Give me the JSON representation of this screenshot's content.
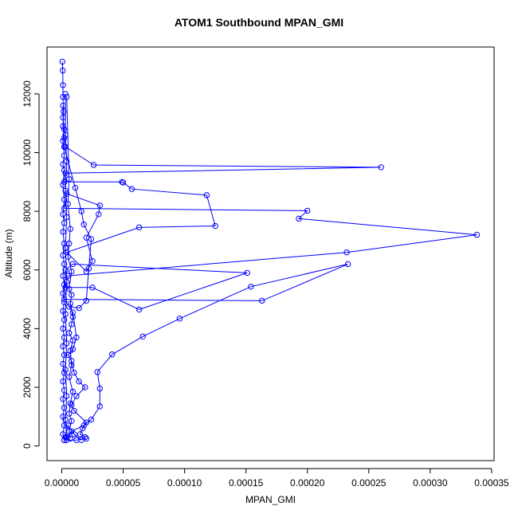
{
  "chart_data": {
    "type": "line",
    "title": "ATOM1 Southbound MPAN_GMI",
    "xlabel": "MPAN_GMI",
    "ylabel": "Altitude (m)",
    "xlim": [
      -1.2e-05,
      0.000352
    ],
    "ylim": [
      -500,
      13600
    ],
    "x_ticks": [
      0,
      5e-05,
      0.0001,
      0.00015,
      0.0002,
      0.00025,
      0.0003,
      0.00035
    ],
    "x_tick_labels": [
      "0.00000",
      "0.00005",
      "0.00010",
      "0.00015",
      "0.00020",
      "0.00025",
      "0.00030",
      "0.00035"
    ],
    "y_ticks": [
      0,
      2000,
      4000,
      6000,
      8000,
      10000,
      12000
    ],
    "y_tick_labels": [
      "0",
      "2000",
      "4000",
      "6000",
      "8000",
      "10000",
      "12000"
    ],
    "marker": "open-circle",
    "grid": false,
    "colors": {
      "series": "#0000ff",
      "axis": "#000000"
    },
    "series": [
      {
        "values": [
          [
            5e-07,
            13100
          ],
          [
            8e-07,
            12800
          ],
          [
            1e-06,
            12300
          ],
          [
            1e-06,
            11900
          ],
          [
            1.5e-06,
            11400
          ],
          [
            1e-06,
            10900
          ],
          [
            2e-06,
            10500
          ],
          [
            2e-06,
            10200
          ],
          [
            3e-06,
            10200
          ],
          [
            2.6e-05,
            9580
          ],
          [
            0.00026,
            9500
          ],
          [
            3e-06,
            9300
          ],
          [
            2e-06,
            9000
          ],
          [
            4.9e-05,
            9000
          ],
          [
            5e-05,
            8980
          ],
          [
            5.7e-05,
            8760
          ],
          [
            0.000118,
            8550
          ],
          [
            0.000125,
            7500
          ],
          [
            6.3e-05,
            7450
          ],
          [
            4e-06,
            6600
          ],
          [
            2e-05,
            5950
          ],
          [
            2.5e-05,
            6300
          ],
          [
            2e-05,
            7100
          ],
          [
            3e-05,
            7900
          ],
          [
            3.1e-05,
            8200
          ],
          [
            4e-06,
            8600
          ],
          [
            2e-06,
            8100
          ],
          [
            0.0002,
            8020
          ],
          [
            0.000193,
            7750
          ],
          [
            0.000338,
            7200
          ],
          [
            0.000232,
            6600
          ],
          [
            5e-06,
            5800
          ],
          [
            3e-06,
            5400
          ],
          [
            2.5e-05,
            5400
          ],
          [
            6.3e-05,
            4650
          ],
          [
            0.000151,
            5900
          ],
          [
            9e-06,
            6200
          ],
          [
            3e-06,
            6000
          ],
          [
            2e-06,
            5000
          ],
          [
            0.000163,
            4950
          ],
          [
            0.000233,
            6200
          ],
          [
            0.000154,
            5430
          ],
          [
            9.6e-05,
            4340
          ],
          [
            6.6e-05,
            3730
          ],
          [
            4.1e-05,
            3120
          ],
          [
            2.9e-05,
            2520
          ],
          [
            3.1e-05,
            1960
          ],
          [
            3.1e-05,
            1350
          ],
          [
            2.4e-05,
            900
          ],
          [
            1.8e-05,
            700
          ],
          [
            8e-06,
            500
          ],
          [
            4e-06,
            300
          ],
          [
            2e-06,
            200
          ],
          [
            1.2e-05,
            200
          ],
          [
            2e-05,
            250
          ]
        ]
      },
      {
        "values": [
          [
            2e-06,
            10200
          ],
          [
            1.1e-05,
            8800
          ],
          [
            1.6e-05,
            8000
          ],
          [
            1.8e-05,
            7550
          ],
          [
            2.4e-05,
            7050
          ],
          [
            2.2e-05,
            6050
          ],
          [
            2e-05,
            4950
          ],
          [
            1.4e-05,
            4700
          ],
          [
            6e-06,
            4750
          ],
          [
            9e-06,
            4550
          ],
          [
            1.2e-05,
            3700
          ],
          [
            9e-06,
            3300
          ],
          [
            5e-06,
            3100
          ],
          [
            8e-06,
            2900
          ],
          [
            1e-05,
            2500
          ],
          [
            1.4e-05,
            2200
          ],
          [
            1.9e-05,
            2000
          ],
          [
            1.2e-05,
            1700
          ],
          [
            8e-06,
            1400
          ],
          [
            1e-05,
            1200
          ],
          [
            2e-05,
            800
          ],
          [
            1.7e-05,
            600
          ],
          [
            1.5e-05,
            400
          ],
          [
            1.9e-05,
            300
          ],
          [
            1.6e-05,
            200
          ],
          [
            1e-05,
            400
          ],
          [
            5e-06,
            700
          ],
          [
            3e-06,
            300
          ]
        ]
      },
      {
        "values": [
          [
            1e-06,
            11600
          ],
          [
            1e-06,
            11200
          ],
          [
            2e-06,
            10800
          ],
          [
            1e-06,
            10400
          ],
          [
            2e-06,
            9900
          ],
          [
            1e-06,
            9600
          ],
          [
            2e-06,
            9400
          ],
          [
            1e-06,
            8900
          ],
          [
            2e-06,
            8400
          ],
          [
            1e-06,
            7900
          ],
          [
            2e-06,
            7600
          ],
          [
            1e-06,
            7300
          ],
          [
            2e-06,
            6900
          ],
          [
            1e-06,
            6500
          ],
          [
            2e-06,
            6200
          ],
          [
            1e-06,
            5800
          ],
          [
            2e-06,
            5500
          ],
          [
            1e-06,
            5200
          ],
          [
            2e-06,
            4900
          ],
          [
            1e-06,
            4600
          ],
          [
            2e-06,
            4300
          ],
          [
            1e-06,
            4000
          ],
          [
            2e-06,
            3700
          ],
          [
            1e-06,
            3400
          ],
          [
            2e-06,
            3100
          ],
          [
            1e-06,
            2800
          ],
          [
            2e-06,
            2500
          ],
          [
            1e-06,
            2200
          ],
          [
            2e-06,
            1900
          ],
          [
            1e-06,
            1600
          ],
          [
            2e-06,
            1300
          ],
          [
            1e-06,
            1000
          ],
          [
            2e-06,
            700
          ],
          [
            1e-06,
            400
          ],
          [
            2e-06,
            200
          ]
        ]
      },
      {
        "values": [
          [
            4e-06,
            11900
          ],
          [
            6e-06,
            9100
          ],
          [
            5e-06,
            8250
          ],
          [
            7e-06,
            7400
          ],
          [
            6e-06,
            6900
          ],
          [
            5e-06,
            6450
          ],
          [
            8e-06,
            5950
          ],
          [
            6e-06,
            5350
          ],
          [
            8e-06,
            5150
          ],
          [
            7e-06,
            4850
          ],
          [
            9e-06,
            4400
          ],
          [
            8e-06,
            4150
          ],
          [
            6e-06,
            3850
          ],
          [
            9e-06,
            3600
          ],
          [
            7e-06,
            3250
          ],
          [
            8e-06,
            2750
          ],
          [
            6e-06,
            2350
          ],
          [
            9e-06,
            1850
          ],
          [
            7e-06,
            1450
          ],
          [
            6e-06,
            1100
          ],
          [
            8e-06,
            850
          ],
          [
            6e-06,
            500
          ],
          [
            7e-06,
            250
          ]
        ]
      },
      {
        "values": [
          [
            3e-06,
            12000
          ],
          [
            3e-06,
            10600
          ],
          [
            4e-06,
            9700
          ],
          [
            3e-06,
            8700
          ],
          [
            4e-06,
            7800
          ],
          [
            3e-06,
            6750
          ],
          [
            4e-06,
            5600
          ],
          [
            3e-06,
            4500
          ],
          [
            4e-06,
            3500
          ],
          [
            3e-06,
            2600
          ],
          [
            4e-06,
            1700
          ],
          [
            3e-06,
            900
          ],
          [
            4e-06,
            200
          ]
        ]
      }
    ]
  }
}
